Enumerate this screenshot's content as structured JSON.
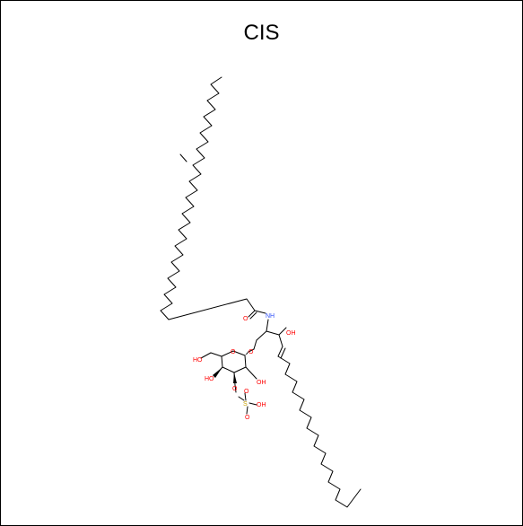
{
  "title": "CIS",
  "atom_labels": {
    "amide_o": "O",
    "nh": "NH",
    "oh_chain": "OH",
    "ring_o": "O",
    "glyco_o": "O",
    "ho_6": "HO",
    "ho_4": "HO",
    "oh_2": "OH",
    "o_3": "O",
    "s": "S",
    "so_top": "O",
    "so_bottom": "O",
    "so_oh": "OH"
  },
  "colors": {
    "bond": "#000000",
    "oxygen": "#ff0000",
    "nitrogen": "#3050f8",
    "sulfur": "#c8a000"
  }
}
